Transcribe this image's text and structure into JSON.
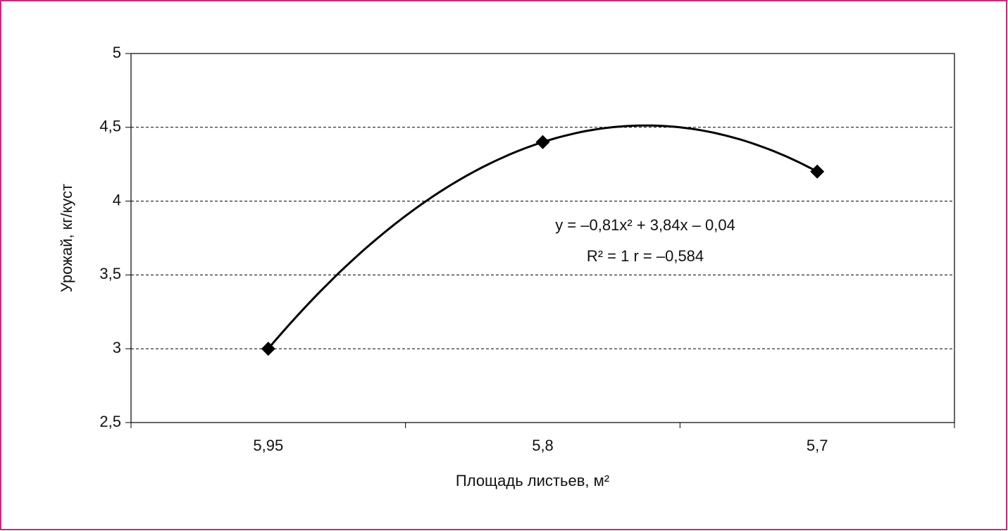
{
  "chart_data": {
    "type": "line",
    "x_label": "Площадь листьев, м²",
    "y_label": "Урожай, кг/куст",
    "categories": [
      "5,95",
      "5,8",
      "5,7"
    ],
    "series": [
      {
        "name": "Урожай",
        "color": "#000000",
        "values": [
          3.0,
          4.4,
          4.2
        ]
      }
    ],
    "trendline": "polynomial",
    "annotations": [
      "y = –0,81x² + 3,84x – 0,04",
      "R² = 1   r = –0,584"
    ],
    "ylim": [
      2.5,
      5
    ],
    "yticks": [
      {
        "value": 2.5,
        "label": "2,5"
      },
      3,
      {
        "value": 3.5,
        "label": "3,5"
      },
      4,
      {
        "value": 4.5,
        "label": "4,5"
      },
      5
    ],
    "grid": true
  }
}
